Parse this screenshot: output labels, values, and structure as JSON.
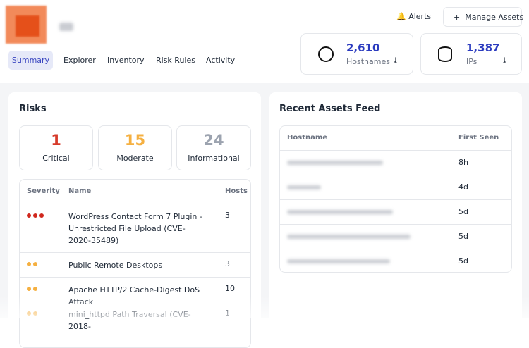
{
  "header": {
    "alerts": "Alerts",
    "manage_assets": "Manage Assets",
    "tabs": [
      "Summary",
      "Explorer",
      "Inventory",
      "Risk Rules",
      "Activity"
    ],
    "stats": [
      {
        "value": "2,610",
        "label": "Hostnames"
      },
      {
        "value": "1,387",
        "label": "IPs"
      }
    ]
  },
  "risks": {
    "title": "Risks",
    "counts": [
      {
        "value": "1",
        "label": "Critical"
      },
      {
        "value": "15",
        "label": "Moderate"
      },
      {
        "value": "24",
        "label": "Informational"
      }
    ],
    "table": {
      "headers": [
        "Severity",
        "Name",
        "Hosts"
      ],
      "rows": [
        {
          "severity": 3,
          "name": "WordPress Contact Form 7 Plugin - Unrestricted File Upload (CVE-2020-35489)",
          "hosts": "3"
        },
        {
          "severity": 2,
          "name": "Public Remote Desktops",
          "hosts": "3"
        },
        {
          "severity": 2,
          "name": "Apache HTTP/2 Cache-Digest DoS Attack",
          "hosts": "10"
        },
        {
          "severity": 2,
          "name": "mini_httpd Path Traversal (CVE-2018-",
          "hosts": "1"
        }
      ]
    }
  },
  "feed": {
    "title": "Recent Assets Feed",
    "headers": [
      "Hostname",
      "First Seen"
    ],
    "rows": [
      "8h",
      "4d",
      "5d",
      "5d",
      "5d"
    ]
  }
}
